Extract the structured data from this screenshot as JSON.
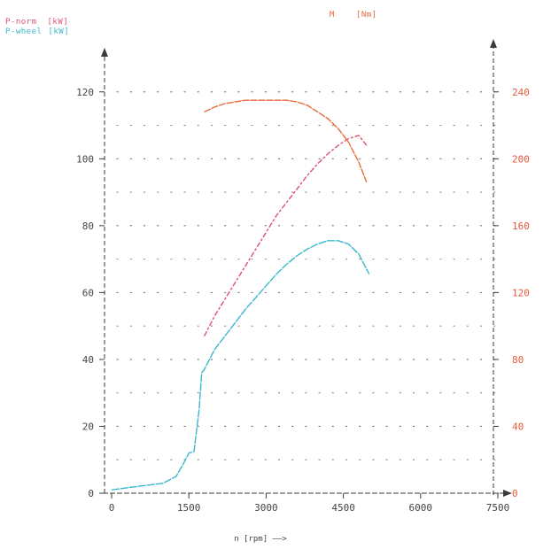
{
  "colors": {
    "axis": "#3a3a3a",
    "grid": "#6d6d6d",
    "tick_text": "#444444",
    "p_norm": "#e0506e",
    "p_wheel": "#3ab7cf",
    "torque": "#e86a3a",
    "right_axis_text": "#e8583a"
  },
  "legend": {
    "p_norm_label": "P-norm",
    "p_norm_unit": "[kW]",
    "p_wheel_label": "P-wheel",
    "p_wheel_unit": "[kW]",
    "torque_label": "M",
    "torque_unit": "[Nm]"
  },
  "chart_data": {
    "type": "line",
    "xlabel": "n [rpm] ——>",
    "xlim": [
      0,
      7500
    ],
    "x_ticks": [
      "0",
      "1500",
      "3000",
      "4500",
      "6000",
      "7500"
    ],
    "ylim_left": [
      0,
      130
    ],
    "y_ticks_left": [
      "0",
      "20",
      "40",
      "60",
      "80",
      "100",
      "120"
    ],
    "ylim_right": [
      0,
      260
    ],
    "y_ticks_right": [
      "0",
      "40",
      "80",
      "120",
      "160",
      "200",
      "240"
    ],
    "grid": true,
    "series": [
      {
        "name": "P-norm",
        "unit": "[kW]",
        "axis": "left",
        "color_key": "p_norm",
        "x": [
          1800,
          2000,
          2200,
          2400,
          2600,
          2800,
          3000,
          3200,
          3400,
          3600,
          3800,
          4000,
          4200,
          4400,
          4600,
          4800,
          4950
        ],
        "y": [
          47,
          53,
          58,
          63,
          68,
          73,
          78,
          83,
          87,
          91,
          95,
          98.5,
          101.5,
          104,
          106,
          107,
          104
        ]
      },
      {
        "name": "P-wheel",
        "unit": "[kW]",
        "axis": "left",
        "color_key": "p_wheel",
        "x": [
          0,
          250,
          500,
          750,
          1000,
          1250,
          1400,
          1500,
          1600,
          1700,
          1750,
          1800,
          1900,
          2000,
          2200,
          2400,
          2600,
          2800,
          3000,
          3200,
          3400,
          3600,
          3800,
          4000,
          4200,
          4400,
          4600,
          4800,
          5000
        ],
        "y": [
          1,
          1.5,
          2,
          2.5,
          3,
          5,
          9,
          12,
          12.5,
          25,
          36,
          37,
          40,
          43,
          47,
          51,
          55,
          58.5,
          62,
          65.5,
          68.5,
          71,
          73,
          74.5,
          75.5,
          75.5,
          74.5,
          71.5,
          65.5
        ]
      },
      {
        "name": "M",
        "unit": "[Nm]",
        "axis": "right",
        "color_key": "torque",
        "x": [
          1800,
          2000,
          2200,
          2400,
          2600,
          2800,
          3000,
          3200,
          3400,
          3600,
          3800,
          4000,
          4200,
          4400,
          4600,
          4800,
          4950
        ],
        "y": [
          228,
          231,
          233,
          234,
          235,
          235,
          235,
          235,
          235,
          234,
          232,
          228,
          224,
          218,
          210,
          198,
          186
        ]
      }
    ]
  }
}
